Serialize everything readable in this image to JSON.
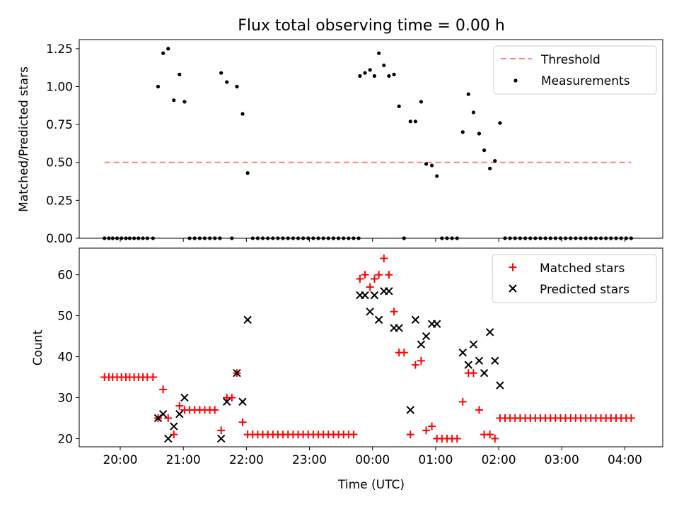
{
  "figure": {
    "title": "Flux total observing time = 0.00 h",
    "xlabel": "Time (UTC)"
  },
  "chart_data": [
    {
      "type": "scatter",
      "title": "Flux total observing time = 0.00 h",
      "xlabel": "",
      "ylabel": "Matched/Predicted stars",
      "x_unit": "hours since 20:00 UTC",
      "xlim": [
        -0.65,
        8.6
      ],
      "ylim": [
        0,
        1.31
      ],
      "yticks": [
        0.0,
        0.25,
        0.5,
        0.75,
        1.0,
        1.25
      ],
      "ytick_labels": [
        "0.00",
        "0.25",
        "0.50",
        "0.75",
        "1.00",
        "1.25"
      ],
      "xticks": [
        0,
        1,
        2,
        3,
        4,
        5,
        6,
        7,
        8
      ],
      "xtick_labels": [],
      "grid": false,
      "legend": "upper right",
      "threshold": {
        "name": "Threshold",
        "color": "#ff7f7f",
        "x": [
          -0.25,
          8.1
        ],
        "y": [
          0.5,
          0.5
        ]
      },
      "series": [
        {
          "name": "Measurements",
          "color": "#000000",
          "marker": "dot",
          "points": [
            [
              -0.25,
              0
            ],
            [
              -0.18,
              0
            ],
            [
              -0.12,
              0
            ],
            [
              -0.05,
              0
            ],
            [
              0.02,
              0
            ],
            [
              0.09,
              0
            ],
            [
              0.15,
              0
            ],
            [
              0.22,
              0
            ],
            [
              0.29,
              0
            ],
            [
              0.36,
              0
            ],
            [
              0.43,
              0
            ],
            [
              0.52,
              0
            ],
            [
              0.6,
              1.0
            ],
            [
              0.68,
              1.22
            ],
            [
              0.76,
              1.25
            ],
            [
              0.85,
              0.91
            ],
            [
              0.94,
              1.08
            ],
            [
              1.02,
              0.9
            ],
            [
              1.1,
              0
            ],
            [
              1.18,
              0
            ],
            [
              1.26,
              0
            ],
            [
              1.34,
              0
            ],
            [
              1.42,
              0
            ],
            [
              1.5,
              0
            ],
            [
              1.58,
              0
            ],
            [
              1.6,
              1.09
            ],
            [
              1.69,
              1.03
            ],
            [
              1.77,
              0
            ],
            [
              1.85,
              1.0
            ],
            [
              1.94,
              0.82
            ],
            [
              2.02,
              0.43
            ],
            [
              2.1,
              0
            ],
            [
              2.18,
              0
            ],
            [
              2.26,
              0
            ],
            [
              2.34,
              0
            ],
            [
              2.42,
              0
            ],
            [
              2.5,
              0
            ],
            [
              2.58,
              0
            ],
            [
              2.66,
              0
            ],
            [
              2.74,
              0
            ],
            [
              2.82,
              0
            ],
            [
              2.9,
              0
            ],
            [
              2.98,
              0
            ],
            [
              3.06,
              0
            ],
            [
              3.14,
              0
            ],
            [
              3.22,
              0
            ],
            [
              3.3,
              0
            ],
            [
              3.38,
              0
            ],
            [
              3.46,
              0
            ],
            [
              3.54,
              0
            ],
            [
              3.62,
              0
            ],
            [
              3.7,
              0
            ],
            [
              3.78,
              0
            ],
            [
              3.8,
              1.07
            ],
            [
              3.88,
              1.09
            ],
            [
              3.96,
              1.11
            ],
            [
              4.03,
              1.07
            ],
            [
              4.1,
              1.22
            ],
            [
              4.18,
              1.14
            ],
            [
              4.26,
              1.07
            ],
            [
              4.34,
              1.08
            ],
            [
              4.42,
              0.87
            ],
            [
              4.5,
              0
            ],
            [
              4.6,
              0.77
            ],
            [
              4.68,
              0.77
            ],
            [
              4.77,
              0.9
            ],
            [
              4.85,
              0.49
            ],
            [
              4.94,
              0.48
            ],
            [
              5.02,
              0.41
            ],
            [
              5.1,
              0
            ],
            [
              5.18,
              0
            ],
            [
              5.26,
              0
            ],
            [
              5.34,
              0
            ],
            [
              5.43,
              0.7
            ],
            [
              5.52,
              0.95
            ],
            [
              5.6,
              0.83
            ],
            [
              5.69,
              0.69
            ],
            [
              5.77,
              0.58
            ],
            [
              5.86,
              0.46
            ],
            [
              5.94,
              0.51
            ],
            [
              6.02,
              0.76
            ],
            [
              6.1,
              0
            ],
            [
              6.18,
              0
            ],
            [
              6.26,
              0
            ],
            [
              6.34,
              0
            ],
            [
              6.42,
              0
            ],
            [
              6.5,
              0
            ],
            [
              6.58,
              0
            ],
            [
              6.66,
              0
            ],
            [
              6.74,
              0
            ],
            [
              6.82,
              0
            ],
            [
              6.9,
              0
            ],
            [
              6.98,
              0
            ],
            [
              7.06,
              0
            ],
            [
              7.14,
              0
            ],
            [
              7.22,
              0
            ],
            [
              7.3,
              0
            ],
            [
              7.38,
              0
            ],
            [
              7.46,
              0
            ],
            [
              7.54,
              0
            ],
            [
              7.62,
              0
            ],
            [
              7.7,
              0
            ],
            [
              7.78,
              0
            ],
            [
              7.86,
              0
            ],
            [
              7.94,
              0
            ],
            [
              8.02,
              0
            ],
            [
              8.1,
              0
            ]
          ]
        }
      ]
    },
    {
      "type": "scatter",
      "title": "",
      "xlabel": "Time (UTC)",
      "ylabel": "Count",
      "x_unit": "hours since 20:00 UTC",
      "xlim": [
        -0.65,
        8.6
      ],
      "ylim": [
        18,
        66.5
      ],
      "yticks": [
        20,
        30,
        40,
        50,
        60
      ],
      "ytick_labels": [
        "20",
        "30",
        "40",
        "50",
        "60"
      ],
      "xticks": [
        0,
        1,
        2,
        3,
        4,
        5,
        6,
        7,
        8
      ],
      "xtick_labels": [
        "20:00",
        "21:00",
        "22:00",
        "23:00",
        "00:00",
        "01:00",
        "02:00",
        "03:00",
        "04:00"
      ],
      "grid": false,
      "legend": "upper right",
      "series": [
        {
          "name": "Matched stars",
          "color": "#ff0000",
          "marker": "plus",
          "points": [
            [
              -0.25,
              35
            ],
            [
              -0.18,
              35
            ],
            [
              -0.12,
              35
            ],
            [
              -0.05,
              35
            ],
            [
              0.02,
              35
            ],
            [
              0.09,
              35
            ],
            [
              0.15,
              35
            ],
            [
              0.22,
              35
            ],
            [
              0.29,
              35
            ],
            [
              0.36,
              35
            ],
            [
              0.43,
              35
            ],
            [
              0.52,
              35
            ],
            [
              0.6,
              25
            ],
            [
              0.68,
              32
            ],
            [
              0.76,
              25
            ],
            [
              0.85,
              21
            ],
            [
              0.94,
              28
            ],
            [
              1.02,
              27
            ],
            [
              1.1,
              27
            ],
            [
              1.18,
              27
            ],
            [
              1.26,
              27
            ],
            [
              1.34,
              27
            ],
            [
              1.42,
              27
            ],
            [
              1.5,
              27
            ],
            [
              1.6,
              22
            ],
            [
              1.69,
              30
            ],
            [
              1.77,
              30
            ],
            [
              1.85,
              36
            ],
            [
              1.94,
              24
            ],
            [
              2.02,
              21
            ],
            [
              2.1,
              21
            ],
            [
              2.18,
              21
            ],
            [
              2.26,
              21
            ],
            [
              2.34,
              21
            ],
            [
              2.42,
              21
            ],
            [
              2.5,
              21
            ],
            [
              2.58,
              21
            ],
            [
              2.66,
              21
            ],
            [
              2.74,
              21
            ],
            [
              2.82,
              21
            ],
            [
              2.9,
              21
            ],
            [
              2.98,
              21
            ],
            [
              3.06,
              21
            ],
            [
              3.14,
              21
            ],
            [
              3.22,
              21
            ],
            [
              3.3,
              21
            ],
            [
              3.38,
              21
            ],
            [
              3.46,
              21
            ],
            [
              3.54,
              21
            ],
            [
              3.62,
              21
            ],
            [
              3.7,
              21
            ],
            [
              3.8,
              59
            ],
            [
              3.88,
              60
            ],
            [
              3.96,
              57
            ],
            [
              4.03,
              59
            ],
            [
              4.1,
              60
            ],
            [
              4.18,
              64
            ],
            [
              4.26,
              60
            ],
            [
              4.34,
              51
            ],
            [
              4.42,
              41
            ],
            [
              4.5,
              41
            ],
            [
              4.6,
              21
            ],
            [
              4.68,
              38
            ],
            [
              4.77,
              39
            ],
            [
              4.85,
              22
            ],
            [
              4.94,
              23
            ],
            [
              5.02,
              20
            ],
            [
              5.1,
              20
            ],
            [
              5.18,
              20
            ],
            [
              5.26,
              20
            ],
            [
              5.34,
              20
            ],
            [
              5.43,
              29
            ],
            [
              5.52,
              36
            ],
            [
              5.6,
              36
            ],
            [
              5.69,
              27
            ],
            [
              5.77,
              21
            ],
            [
              5.86,
              21
            ],
            [
              5.94,
              20
            ],
            [
              6.02,
              25
            ],
            [
              6.1,
              25
            ],
            [
              6.18,
              25
            ],
            [
              6.26,
              25
            ],
            [
              6.34,
              25
            ],
            [
              6.42,
              25
            ],
            [
              6.5,
              25
            ],
            [
              6.58,
              25
            ],
            [
              6.66,
              25
            ],
            [
              6.74,
              25
            ],
            [
              6.82,
              25
            ],
            [
              6.9,
              25
            ],
            [
              6.98,
              25
            ],
            [
              7.06,
              25
            ],
            [
              7.14,
              25
            ],
            [
              7.22,
              25
            ],
            [
              7.3,
              25
            ],
            [
              7.38,
              25
            ],
            [
              7.46,
              25
            ],
            [
              7.54,
              25
            ],
            [
              7.62,
              25
            ],
            [
              7.7,
              25
            ],
            [
              7.78,
              25
            ],
            [
              7.86,
              25
            ],
            [
              7.94,
              25
            ],
            [
              8.02,
              25
            ],
            [
              8.1,
              25
            ]
          ]
        },
        {
          "name": "Predicted stars",
          "color": "#000000",
          "marker": "x",
          "points": [
            [
              0.6,
              25
            ],
            [
              0.68,
              26
            ],
            [
              0.76,
              20
            ],
            [
              0.85,
              23
            ],
            [
              0.94,
              26
            ],
            [
              1.02,
              30
            ],
            [
              1.6,
              20
            ],
            [
              1.69,
              29
            ],
            [
              1.85,
              36
            ],
            [
              1.94,
              29
            ],
            [
              2.02,
              49
            ],
            [
              3.8,
              55
            ],
            [
              3.88,
              55
            ],
            [
              3.96,
              51
            ],
            [
              4.03,
              55
            ],
            [
              4.1,
              49
            ],
            [
              4.18,
              56
            ],
            [
              4.26,
              56
            ],
            [
              4.34,
              47
            ],
            [
              4.42,
              47
            ],
            [
              4.6,
              27
            ],
            [
              4.68,
              49
            ],
            [
              4.77,
              43
            ],
            [
              4.85,
              45
            ],
            [
              4.94,
              48
            ],
            [
              5.02,
              48
            ],
            [
              5.43,
              41
            ],
            [
              5.52,
              38
            ],
            [
              5.6,
              43
            ],
            [
              5.69,
              39
            ],
            [
              5.77,
              36
            ],
            [
              5.86,
              46
            ],
            [
              5.94,
              39
            ],
            [
              6.02,
              33
            ]
          ]
        }
      ]
    }
  ]
}
